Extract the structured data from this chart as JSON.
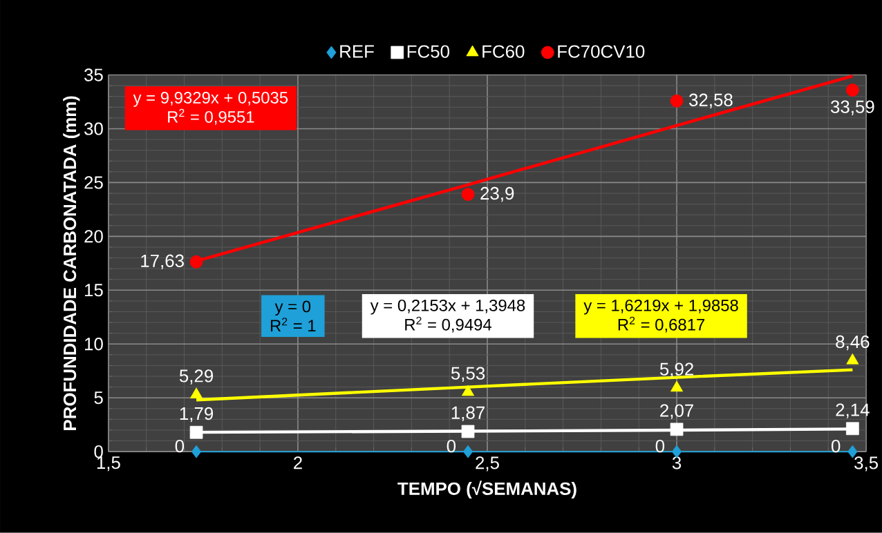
{
  "chart_data": {
    "type": "scatter",
    "xlabel": "TEMPO (√SEMANAS)",
    "ylabel": "PROFUNDIDADE CARBONATADA (mm)",
    "xlim": [
      1.5,
      3.5
    ],
    "ylim": [
      0,
      35
    ],
    "xticks": [
      {
        "value": 1.5,
        "label": "1,5"
      },
      2,
      {
        "value": 2.5,
        "label": "2,5"
      },
      3,
      {
        "value": 3.5,
        "label": "3,5"
      }
    ],
    "yticks": [
      0,
      5,
      10,
      15,
      20,
      25,
      30,
      35
    ],
    "grid": true,
    "legend": "top",
    "x": [
      1.732,
      2.449,
      3,
      3.464
    ],
    "series": [
      {
        "name": "REF",
        "color": "#1fa0d8",
        "marker": "diamond",
        "values": [
          0,
          0,
          0,
          0
        ],
        "value_labels": [
          "0",
          "0",
          "0",
          "0"
        ]
      },
      {
        "name": "FC50",
        "color": "#ffffff",
        "marker": "square",
        "values": [
          1.79,
          1.87,
          2.07,
          2.14
        ],
        "value_labels": [
          "1,79",
          "1,87",
          "2,07",
          "2,14"
        ]
      },
      {
        "name": "FC60",
        "color": "#ffff00",
        "marker": "triangle",
        "values": [
          5.29,
          5.53,
          5.92,
          8.46
        ],
        "value_labels": [
          "5,29",
          "5,53",
          "5,92",
          "8,46"
        ]
      },
      {
        "name": "FC70CV10",
        "color": "#ff0000",
        "marker": "circle",
        "values": [
          17.63,
          23.9,
          32.58,
          33.59
        ],
        "value_labels": [
          "17,63",
          "23,9",
          "32,58",
          "33,59"
        ]
      },
      {
        "type": "line",
        "color": "#ff0000",
        "values": [
          17.7,
          24.8,
          30.3,
          34.9
        ]
      },
      {
        "type": "line",
        "color": "#1fa0d8",
        "values": [
          0,
          0,
          0,
          0
        ]
      },
      {
        "type": "line",
        "color": "#ffffff",
        "values": [
          1.8,
          1.9,
          2.0,
          2.1
        ]
      },
      {
        "type": "line",
        "color": "#ffff00",
        "values": [
          4.8,
          6.0,
          6.9,
          7.6
        ]
      }
    ],
    "annotations": [
      "y = 9,9329x + 0,5035",
      "R$^{2}$ = 0,9551",
      "y = 0",
      "R$^{2}$ = 1",
      "y = 0,2153x + 1,3948",
      "R$^{2}$ = 0,9494",
      "y = 1,6219x + 1,9858",
      "R$^{2}$ = 0,6817"
    ]
  }
}
